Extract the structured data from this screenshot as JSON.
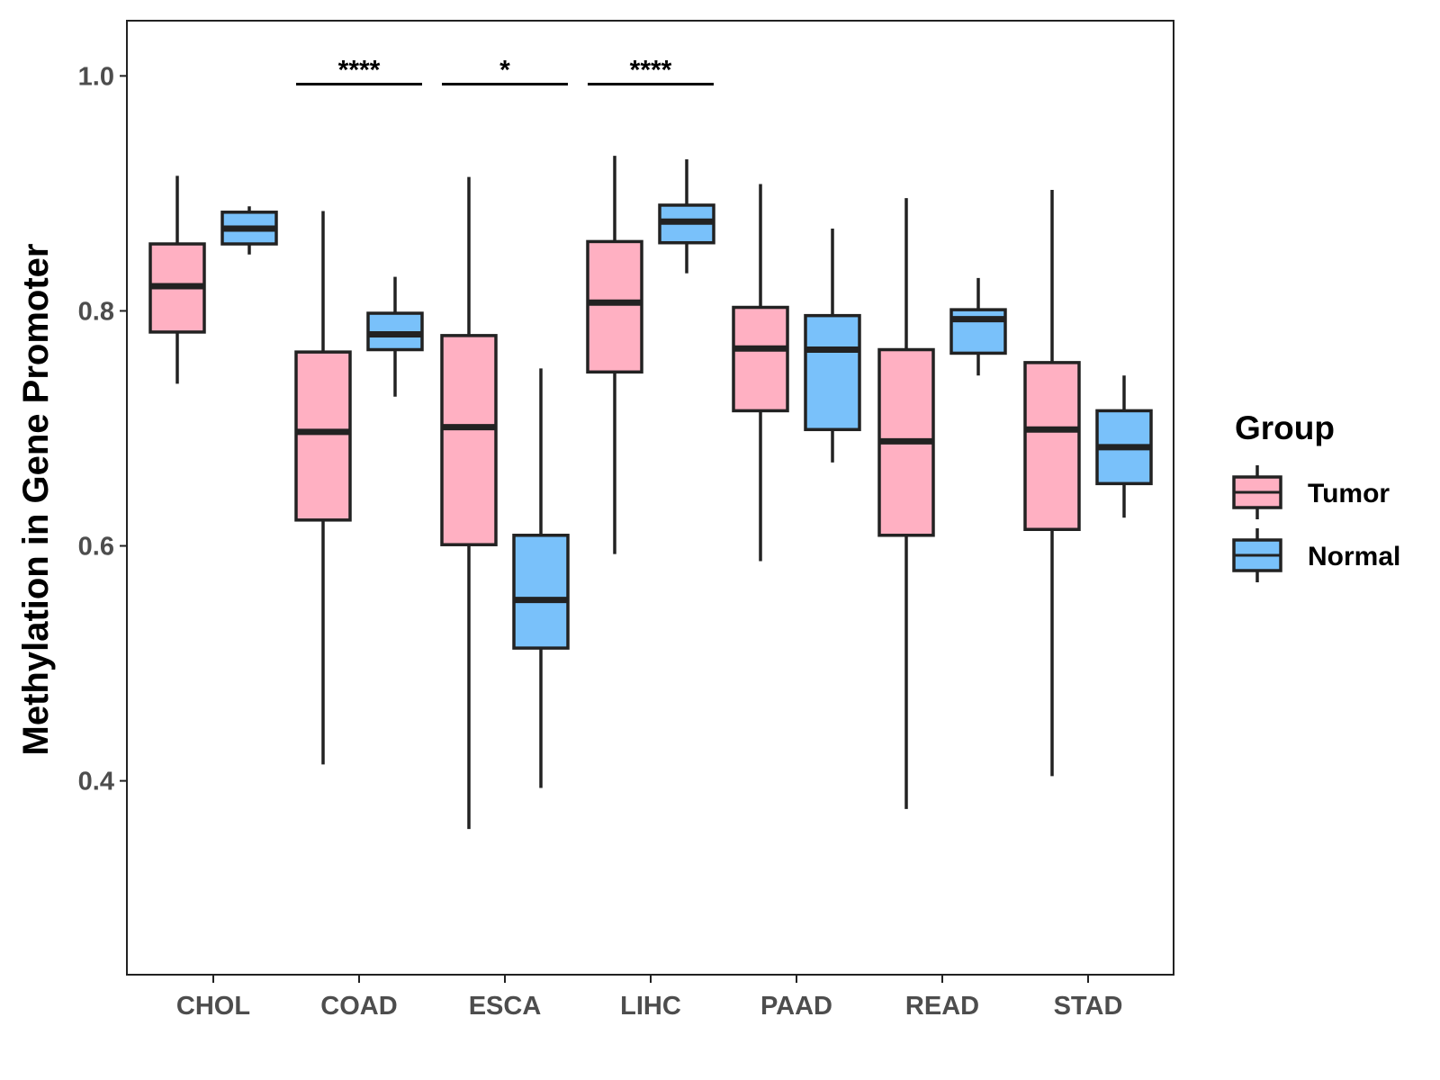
{
  "chart_data": {
    "type": "boxplot",
    "title": "",
    "xlabel": "",
    "ylabel": "Methylation in Gene Promoter",
    "ylim": [
      0.235,
      1.047
    ],
    "yticks": [
      0.4,
      0.6,
      0.8,
      1.0
    ],
    "ytick_labels": [
      "0.4",
      "0.6",
      "0.8",
      "1.0"
    ],
    "grid": false,
    "categories": [
      "CHOL",
      "COAD",
      "ESCA",
      "LIHC",
      "PAAD",
      "READ",
      "STAD"
    ],
    "legend": {
      "title": "Group",
      "placement": "right",
      "entries": [
        "Tumor",
        "Normal"
      ]
    },
    "series": [
      {
        "name": "Tumor",
        "color": "#FFB0C2",
        "boxes": [
          {
            "whisker_low": 0.738,
            "q1": 0.782,
            "median": 0.821,
            "q3": 0.857,
            "whisker_high": 0.915
          },
          {
            "whisker_low": 0.414,
            "q1": 0.622,
            "median": 0.697,
            "q3": 0.765,
            "whisker_high": 0.885
          },
          {
            "whisker_low": 0.359,
            "q1": 0.601,
            "median": 0.701,
            "q3": 0.779,
            "whisker_high": 0.914
          },
          {
            "whisker_low": 0.593,
            "q1": 0.748,
            "median": 0.807,
            "q3": 0.859,
            "whisker_high": 0.932
          },
          {
            "whisker_low": 0.587,
            "q1": 0.715,
            "median": 0.768,
            "q3": 0.803,
            "whisker_high": 0.908
          },
          {
            "whisker_low": 0.376,
            "q1": 0.609,
            "median": 0.689,
            "q3": 0.767,
            "whisker_high": 0.896
          },
          {
            "whisker_low": 0.404,
            "q1": 0.614,
            "median": 0.699,
            "q3": 0.756,
            "whisker_high": 0.903
          }
        ]
      },
      {
        "name": "Normal",
        "color": "#79C1FA",
        "boxes": [
          {
            "whisker_low": 0.848,
            "q1": 0.857,
            "median": 0.87,
            "q3": 0.884,
            "whisker_high": 0.889
          },
          {
            "whisker_low": 0.727,
            "q1": 0.767,
            "median": 0.78,
            "q3": 0.798,
            "whisker_high": 0.829
          },
          {
            "whisker_low": 0.394,
            "q1": 0.513,
            "median": 0.554,
            "q3": 0.609,
            "whisker_high": 0.751
          },
          {
            "whisker_low": 0.832,
            "q1": 0.858,
            "median": 0.876,
            "q3": 0.89,
            "whisker_high": 0.929
          },
          {
            "whisker_low": 0.671,
            "q1": 0.699,
            "median": 0.767,
            "q3": 0.796,
            "whisker_high": 0.87
          },
          {
            "whisker_low": 0.745,
            "q1": 0.764,
            "median": 0.793,
            "q3": 0.801,
            "whisker_high": 0.828
          },
          {
            "whisker_low": 0.624,
            "q1": 0.653,
            "median": 0.684,
            "q3": 0.715,
            "whisker_high": 0.745
          }
        ]
      }
    ],
    "annotations": [
      {
        "category": "COAD",
        "label": "****",
        "y": 0.993
      },
      {
        "category": "ESCA",
        "label": "*",
        "y": 0.993
      },
      {
        "category": "LIHC",
        "label": "****",
        "y": 0.993
      }
    ]
  },
  "colors": {
    "tumor": "#FFB0C2",
    "normal": "#79C1FA",
    "stroke": "#222222",
    "axis_text": "#4d4d4d"
  }
}
